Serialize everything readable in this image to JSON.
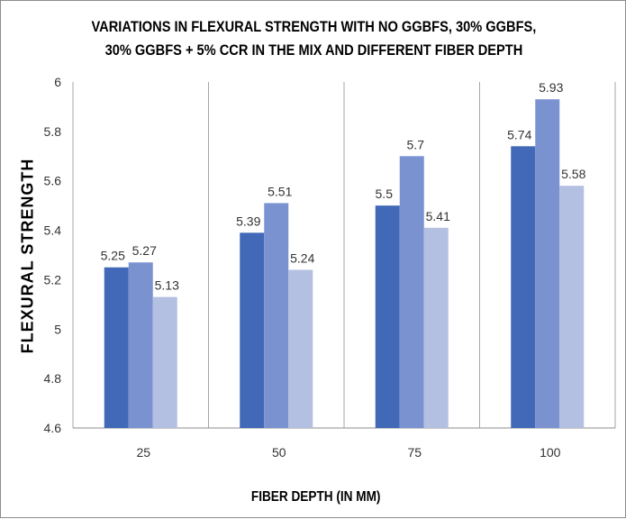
{
  "chart_data": {
    "type": "bar",
    "title_lines": [
      "VARIATIONS  IN  FLEXURAL STRENGTH WITH NO GGBFS, 30% GGBFS,",
      "30% GGBFS + 5% CCR IN THE MIX AND DIFFERENT FIBER DEPTH"
    ],
    "xlabel": "FIBER DEPTH (IN MM)",
    "ylabel": "FLEXURAL STRENGTH",
    "categories": [
      "25",
      "50",
      "75",
      "100"
    ],
    "series": [
      {
        "values": [
          5.25,
          5.39,
          5.5,
          5.74
        ],
        "value_labels": [
          "5.25",
          "5.39",
          "5.5",
          "5.74"
        ],
        "color": "#4169b8"
      },
      {
        "values": [
          5.27,
          5.51,
          5.7,
          5.93
        ],
        "value_labels": [
          "5.27",
          "5.51",
          "5.7",
          "5.93"
        ],
        "color": "#7a93d0"
      },
      {
        "values": [
          5.13,
          5.24,
          5.41,
          5.58
        ],
        "value_labels": [
          "5.13",
          "5.24",
          "5.41",
          "5.58"
        ],
        "color": "#b4c0e2"
      }
    ],
    "ylim": [
      4.6,
      6
    ],
    "yticks": [
      "4.6",
      "4.8",
      "5",
      "5.2",
      "5.4",
      "5.6",
      "5.8",
      "6"
    ],
    "grid": "vertical lines at category boundaries",
    "legend": "none"
  }
}
